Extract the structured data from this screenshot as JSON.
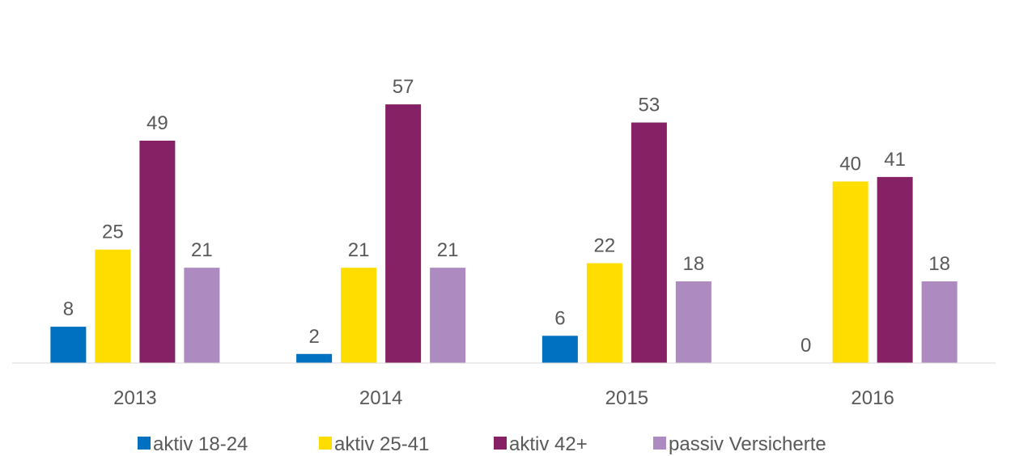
{
  "chart_data": {
    "type": "bar",
    "categories": [
      "2013",
      "2014",
      "2015",
      "2016"
    ],
    "series": [
      {
        "name": "aktiv 18-24",
        "color": "#0070c0",
        "values": [
          8,
          2,
          6,
          0
        ]
      },
      {
        "name": "aktiv 25-41",
        "color": "#ffdd00",
        "values": [
          25,
          21,
          22,
          40
        ]
      },
      {
        "name": "aktiv 42+",
        "color": "#862165",
        "values": [
          49,
          57,
          53,
          41
        ]
      },
      {
        "name": "passiv Versicherte",
        "color": "#ad8bc0",
        "values": [
          21,
          21,
          18,
          18
        ]
      }
    ],
    "ylim": [
      0,
      80
    ]
  }
}
